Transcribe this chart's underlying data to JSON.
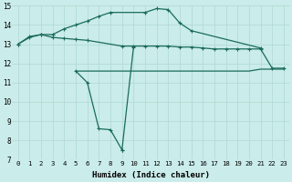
{
  "background_color": "#caecea",
  "grid_color": "#b0d8d0",
  "line_color": "#1a6b5a",
  "xlabel": "Humidex (Indice chaleur)",
  "xlim": [
    -0.5,
    23.5
  ],
  "ylim": [
    7,
    15
  ],
  "yticks": [
    7,
    8,
    9,
    10,
    11,
    12,
    13,
    14,
    15
  ],
  "xticks": [
    0,
    1,
    2,
    3,
    4,
    5,
    6,
    7,
    8,
    9,
    10,
    11,
    12,
    13,
    14,
    15,
    16,
    17,
    18,
    19,
    20,
    21,
    22,
    23
  ],
  "curve_upper": [
    [
      0,
      13.0
    ],
    [
      1,
      13.4
    ],
    [
      2,
      13.5
    ],
    [
      3,
      13.5
    ],
    [
      4,
      13.8
    ],
    [
      5,
      14.0
    ],
    [
      6,
      14.2
    ],
    [
      7,
      14.45
    ],
    [
      8,
      14.65
    ],
    [
      11,
      14.65
    ],
    [
      12,
      14.85
    ],
    [
      13,
      14.8
    ],
    [
      14,
      14.1
    ],
    [
      15,
      13.7
    ],
    [
      21,
      12.8
    ]
  ],
  "curve_mid": [
    [
      0,
      13.0
    ],
    [
      1,
      13.35
    ],
    [
      2,
      13.5
    ],
    [
      3,
      13.35
    ],
    [
      4,
      13.3
    ],
    [
      5,
      13.25
    ],
    [
      6,
      13.2
    ],
    [
      9,
      12.9
    ],
    [
      10,
      12.9
    ],
    [
      11,
      12.9
    ],
    [
      12,
      12.9
    ],
    [
      13,
      12.9
    ],
    [
      14,
      12.85
    ],
    [
      15,
      12.85
    ],
    [
      16,
      12.8
    ],
    [
      17,
      12.75
    ],
    [
      18,
      12.75
    ],
    [
      19,
      12.75
    ],
    [
      20,
      12.75
    ],
    [
      21,
      12.75
    ],
    [
      22,
      11.75
    ],
    [
      23,
      11.75
    ]
  ],
  "curve_low_dip": [
    [
      5,
      11.6
    ],
    [
      6,
      11.0
    ],
    [
      7,
      8.6
    ],
    [
      8,
      8.55
    ],
    [
      9,
      7.5
    ],
    [
      9,
      12.85
    ]
  ],
  "curve_low_dip2": [
    [
      5,
      11.6
    ],
    [
      6,
      11.0
    ],
    [
      7,
      8.6
    ],
    [
      8,
      8.55
    ],
    [
      9,
      7.5
    ]
  ],
  "curve_low_recover": [
    [
      9,
      7.5
    ],
    [
      10,
      12.9
    ]
  ],
  "curve_flat": [
    [
      5,
      11.6
    ],
    [
      10,
      11.6
    ],
    [
      11,
      11.6
    ],
    [
      12,
      11.6
    ],
    [
      13,
      11.6
    ],
    [
      14,
      11.6
    ],
    [
      15,
      11.6
    ],
    [
      16,
      11.6
    ],
    [
      17,
      11.6
    ],
    [
      18,
      11.6
    ],
    [
      19,
      11.6
    ],
    [
      20,
      11.6
    ],
    [
      21,
      11.7
    ],
    [
      22,
      11.7
    ],
    [
      23,
      11.7
    ]
  ]
}
